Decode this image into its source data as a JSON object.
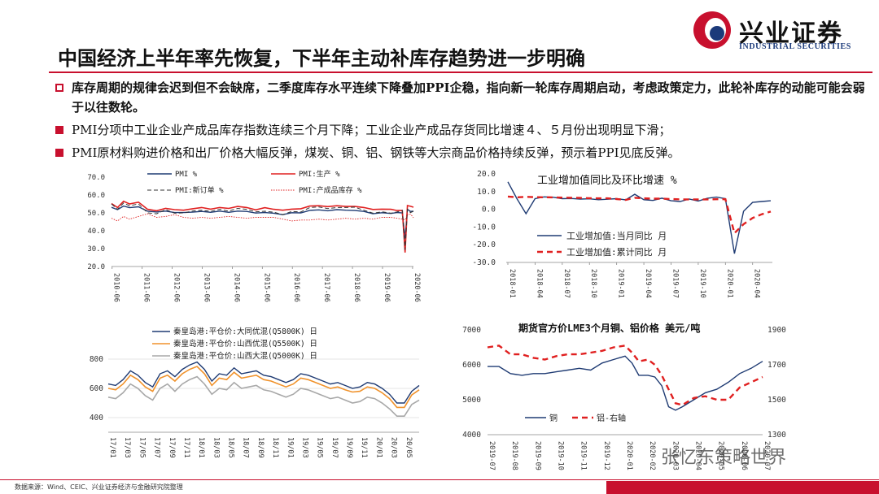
{
  "logo": {
    "name_cn": "兴业证券",
    "name_en": "INDUSTRIAL SECURITIES"
  },
  "title": "中国经济上半年率先恢复，下半年主动补库存趋势进一步明确",
  "bullets": [
    "库存周期的规律会迟到但不会缺席，二季度库存水平连续下降叠加PPI企稳，指向新一轮库存周期启动，考虑政策定力，此轮补库存的动能可能会弱于以往数轮。",
    "PMI分项中工业企业产成品库存指数连续三个月下降；工业企业产成品存货同比增速４、５月份出现明显下滑；",
    "PMI原材料购进价格和出厂价格大幅反弹，煤炭、铜、铝、钢铁等大宗商品价格持续反弹，预示着PPI见底反弹。"
  ],
  "colors": {
    "brand_red": "#c8102e",
    "brand_blue": "#1b3a7a",
    "series_blue": "#1f3b73",
    "series_red": "#e02020",
    "series_orange": "#f0922b",
    "series_gray": "#a8a8a8"
  },
  "source": "数据来源：Wind、CEIC、兴业证券经济与金融研究院整理",
  "watermark": "张忆东策略世界",
  "chart_data": [
    {
      "id": "pmi",
      "type": "line",
      "title": "",
      "ylim": [
        20,
        70
      ],
      "yticks": [
        "70.0",
        "60.0",
        "50.0",
        "40.0",
        "30.0",
        "20.0"
      ],
      "xticks": [
        "2010-06",
        "2011-06",
        "2012-06",
        "2013-06",
        "2014-06",
        "2015-06",
        "2016-06",
        "2017-06",
        "2018-06",
        "2019-06",
        "2020-06"
      ],
      "legend": [
        "PMI %",
        "PMI:生产 %",
        "PMI:新订单 %",
        "PMI:产成品库存 %"
      ],
      "series": [
        {
          "name": "PMI %",
          "style": "solid-blue",
          "x": [
            2010.4,
            2010.6,
            2010.8,
            2011.0,
            2011.3,
            2011.6,
            2011.9,
            2012.2,
            2012.5,
            2012.8,
            2013.1,
            2013.4,
            2013.7,
            2014.0,
            2014.3,
            2014.6,
            2014.9,
            2015.2,
            2015.5,
            2015.8,
            2016.1,
            2016.4,
            2016.7,
            2017.0,
            2017.3,
            2017.6,
            2017.9,
            2018.2,
            2018.5,
            2018.8,
            2019.1,
            2019.4,
            2019.7,
            2019.9,
            2020.08,
            2020.17,
            2020.25,
            2020.35,
            2020.45
          ],
          "y": [
            53.1,
            51.8,
            53.8,
            52.9,
            53.4,
            50.9,
            50.5,
            51.0,
            50.2,
            50.2,
            50.4,
            50.8,
            50.3,
            51.0,
            50.3,
            51.0,
            50.8,
            49.9,
            50.2,
            49.8,
            49.0,
            50.1,
            50.0,
            51.4,
            51.7,
            51.2,
            51.8,
            51.5,
            51.3,
            50.8,
            49.5,
            50.1,
            49.7,
            50.2,
            50.0,
            35.7,
            52.0,
            50.8,
            50.9
          ]
        },
        {
          "name": "PMI:生产 %",
          "style": "solid-red",
          "x": [
            2010.4,
            2010.6,
            2010.8,
            2011.0,
            2011.3,
            2011.6,
            2011.9,
            2012.2,
            2012.5,
            2012.8,
            2013.1,
            2013.4,
            2013.7,
            2014.0,
            2014.3,
            2014.6,
            2014.9,
            2015.2,
            2015.5,
            2015.8,
            2016.1,
            2016.4,
            2016.7,
            2017.0,
            2017.3,
            2017.6,
            2017.9,
            2018.2,
            2018.5,
            2018.8,
            2019.1,
            2019.4,
            2019.7,
            2019.9,
            2020.08,
            2020.17,
            2020.25,
            2020.35,
            2020.45
          ],
          "y": [
            55.2,
            53.0,
            56.5,
            55.0,
            56.0,
            52.0,
            51.2,
            52.5,
            51.8,
            51.5,
            52.3,
            53.0,
            52.1,
            53.0,
            52.5,
            53.6,
            53.0,
            51.7,
            52.9,
            52.0,
            51.5,
            52.1,
            52.3,
            53.8,
            54.0,
            53.5,
            54.0,
            53.6,
            53.6,
            53.0,
            51.9,
            52.1,
            52.0,
            51.3,
            51.3,
            27.8,
            54.1,
            53.7,
            53.2
          ]
        },
        {
          "name": "PMI:新订单 %",
          "style": "dashed-dark",
          "x": [
            2010.4,
            2010.6,
            2010.8,
            2011.0,
            2011.3,
            2011.6,
            2011.9,
            2012.2,
            2012.5,
            2012.8,
            2013.1,
            2013.4,
            2013.7,
            2014.0,
            2014.3,
            2014.6,
            2014.9,
            2015.2,
            2015.5,
            2015.8,
            2016.1,
            2016.4,
            2016.7,
            2017.0,
            2017.3,
            2017.6,
            2017.9,
            2018.2,
            2018.5,
            2018.8,
            2019.1,
            2019.4,
            2019.7,
            2019.9,
            2020.08,
            2020.17,
            2020.25,
            2020.35,
            2020.45
          ],
          "y": [
            55.0,
            52.0,
            55.5,
            54.0,
            55.0,
            50.0,
            49.5,
            51.8,
            49.8,
            50.0,
            51.0,
            51.5,
            50.8,
            52.0,
            51.0,
            52.5,
            52.0,
            50.6,
            50.9,
            50.4,
            49.0,
            50.8,
            50.5,
            53.0,
            53.3,
            52.4,
            53.0,
            53.0,
            53.2,
            51.5,
            49.8,
            50.6,
            49.8,
            50.5,
            51.4,
            29.3,
            52.0,
            50.2,
            50.9
          ]
        },
        {
          "name": "PMI:产成品库存 %",
          "style": "dotted-red",
          "x": [
            2010.4,
            2010.6,
            2010.8,
            2011.0,
            2011.3,
            2011.6,
            2011.9,
            2012.2,
            2012.5,
            2012.8,
            2013.1,
            2013.4,
            2013.7,
            2014.0,
            2014.3,
            2014.6,
            2014.9,
            2015.2,
            2015.5,
            2015.8,
            2016.1,
            2016.4,
            2016.7,
            2017.0,
            2017.3,
            2017.6,
            2017.9,
            2018.2,
            2018.5,
            2018.8,
            2019.1,
            2019.4,
            2019.7,
            2019.9,
            2020.08,
            2020.17,
            2020.25,
            2020.35,
            2020.45
          ],
          "y": [
            47.0,
            45.5,
            48.0,
            46.5,
            48.0,
            49.5,
            47.5,
            48.0,
            49.0,
            47.5,
            47.0,
            47.5,
            47.0,
            47.5,
            48.0,
            47.5,
            47.0,
            47.5,
            47.5,
            47.5,
            46.5,
            45.5,
            46.0,
            46.0,
            46.5,
            46.0,
            46.5,
            47.0,
            46.5,
            47.0,
            46.5,
            47.5,
            47.5,
            47.0,
            46.5,
            46.1,
            49.1,
            49.3,
            47.3
          ]
        }
      ]
    },
    {
      "id": "industrial",
      "type": "line",
      "title": "工业增加值同比及环比增速 %",
      "ylim": [
        -30,
        20
      ],
      "yticks": [
        "20.0",
        "10.0",
        "0.0",
        "-10.0",
        "-20.0",
        "-30.0"
      ],
      "xticks": [
        "2018-01",
        "2018-04",
        "2018-07",
        "2018-10",
        "2019-01",
        "2019-04",
        "2019-07",
        "2019-10",
        "2020-01",
        "2020-04"
      ],
      "legend": [
        "工业增加值:当月同比 月",
        "工业增加值:累计同比 月"
      ],
      "series": [
        {
          "name": "工业增加值:当月同比 月",
          "style": "solid-blue",
          "x": [
            0,
            1,
            2,
            3,
            4,
            5,
            6,
            7,
            8,
            9,
            10,
            11,
            12,
            13,
            14,
            15,
            16,
            17,
            18,
            19,
            20,
            21,
            22,
            23,
            24,
            25,
            26,
            27,
            28,
            29
          ],
          "y": [
            15.5,
            6.0,
            -2.5,
            6.0,
            7.0,
            6.8,
            6.0,
            6.1,
            5.8,
            5.9,
            5.4,
            5.7,
            6.0,
            5.3,
            8.5,
            5.4,
            5.0,
            6.3,
            4.8,
            4.4,
            5.8,
            4.7,
            6.2,
            6.9,
            6.0,
            -25.0,
            -1.1,
            3.9,
            4.4,
            4.8
          ]
        },
        {
          "name": "工业增加值:累计同比 月",
          "style": "dashed-red",
          "x": [
            0,
            1,
            2,
            3,
            4,
            5,
            6,
            7,
            8,
            9,
            10,
            11,
            12,
            13,
            14,
            15,
            16,
            17,
            18,
            19,
            20,
            21,
            22,
            23,
            24,
            25,
            26,
            27,
            28,
            29
          ],
          "y": [
            7.2,
            6.8,
            7.0,
            6.9,
            6.8,
            6.7,
            6.6,
            6.5,
            6.4,
            6.3,
            6.2,
            6.2,
            5.8,
            5.3,
            6.5,
            6.2,
            6.0,
            6.0,
            5.8,
            5.6,
            5.6,
            5.6,
            5.6,
            5.7,
            5.7,
            -13.5,
            -8.4,
            -4.9,
            -2.8,
            -1.3
          ]
        }
      ]
    },
    {
      "id": "coal",
      "type": "line",
      "title": "",
      "ylim": [
        300,
        850
      ],
      "yticks": [
        "800",
        "600",
        "400"
      ],
      "xticks": [
        "17/01",
        "17/03",
        "17/05",
        "17/07",
        "17/09",
        "17/11",
        "18/01",
        "18/03",
        "18/05",
        "18/07",
        "18/09",
        "18/11",
        "19/01",
        "19/03",
        "19/05",
        "19/07",
        "19/09",
        "19/11",
        "20/01",
        "20/03",
        "20/05"
      ],
      "legend": [
        "秦皇岛港:平仓价:大同优混(Q5800K) 日",
        "秦皇岛港:平仓价:山西优混(Q5500K) 日",
        "秦皇岛港:平仓价:山西大混(Q5000K) 日"
      ],
      "series": [
        {
          "name": "秦皇岛港:平仓价:大同优混(Q5800K) 日",
          "style": "solid-blue",
          "x": [
            0,
            1,
            2,
            3,
            4,
            5,
            6,
            7,
            8,
            9,
            10,
            11,
            12,
            13,
            14,
            15,
            16,
            17,
            18,
            19,
            20,
            21,
            22,
            23,
            24,
            25,
            26,
            27,
            28,
            29,
            30,
            31,
            32,
            33,
            34,
            35,
            36,
            37,
            38,
            39,
            40,
            41,
            42
          ],
          "y": [
            630,
            620,
            660,
            720,
            690,
            640,
            610,
            700,
            720,
            680,
            730,
            760,
            780,
            730,
            650,
            700,
            690,
            740,
            700,
            710,
            720,
            690,
            680,
            660,
            640,
            660,
            700,
            690,
            670,
            650,
            630,
            640,
            620,
            600,
            610,
            640,
            630,
            600,
            560,
            500,
            500,
            580,
            620
          ]
        },
        {
          "name": "秦皇岛港:平仓价:山西优混(Q5500K) 日",
          "style": "solid-orange",
          "x": [
            0,
            1,
            2,
            3,
            4,
            5,
            6,
            7,
            8,
            9,
            10,
            11,
            12,
            13,
            14,
            15,
            16,
            17,
            18,
            19,
            20,
            21,
            22,
            23,
            24,
            25,
            26,
            27,
            28,
            29,
            30,
            31,
            32,
            33,
            34,
            35,
            36,
            37,
            38,
            39,
            40,
            41,
            42
          ],
          "y": [
            600,
            590,
            630,
            690,
            660,
            610,
            580,
            670,
            690,
            650,
            700,
            730,
            750,
            700,
            620,
            670,
            660,
            710,
            670,
            680,
            690,
            660,
            650,
            630,
            610,
            630,
            670,
            660,
            640,
            620,
            600,
            610,
            590,
            575,
            580,
            610,
            600,
            570,
            530,
            470,
            470,
            555,
            590
          ]
        },
        {
          "name": "秦皇岛港:平仓价:山西大混(Q5000K) 日",
          "style": "solid-gray",
          "x": [
            0,
            1,
            2,
            3,
            4,
            5,
            6,
            7,
            8,
            9,
            10,
            11,
            12,
            13,
            14,
            15,
            16,
            17,
            18,
            19,
            20,
            21,
            22,
            23,
            24,
            25,
            26,
            27,
            28,
            29,
            30,
            31,
            32,
            33,
            34,
            35,
            36,
            37,
            38,
            39,
            40,
            41,
            42
          ],
          "y": [
            540,
            530,
            570,
            630,
            600,
            550,
            520,
            600,
            630,
            580,
            630,
            660,
            680,
            630,
            560,
            600,
            590,
            640,
            600,
            610,
            620,
            590,
            580,
            560,
            540,
            560,
            600,
            590,
            570,
            550,
            530,
            540,
            520,
            500,
            510,
            540,
            530,
            500,
            460,
            410,
            410,
            490,
            520
          ]
        }
      ]
    },
    {
      "id": "lme",
      "type": "line",
      "title": "期货官方价LME3个月铜、铝价格 美元/吨",
      "ylim_left": [
        4000,
        7000
      ],
      "ylim_right": [
        1300,
        1900
      ],
      "yticks_left": [
        "7000",
        "6000",
        "5000",
        "4000"
      ],
      "yticks_right": [
        "1900",
        "1700",
        "1500",
        "1300"
      ],
      "xticks": [
        "2019-07",
        "2019-08",
        "2019-09",
        "2019-10",
        "2019-11",
        "2019-12",
        "2020-01",
        "2020-02",
        "2020-03",
        "2020-04",
        "2020-05",
        "2020-06",
        "2020-07"
      ],
      "legend": [
        "铜",
        "铝-右轴"
      ],
      "series": [
        {
          "name": "铜",
          "axis": "left",
          "style": "solid-blue",
          "x": [
            0,
            0.5,
            1,
            1.5,
            2,
            2.5,
            3,
            3.5,
            4,
            4.5,
            5,
            5.5,
            6,
            6.3,
            6.6,
            7,
            7.3,
            7.6,
            7.9,
            8.2,
            8.5,
            9,
            9.5,
            10,
            10.5,
            11,
            11.5,
            12
          ],
          "y": [
            5950,
            5950,
            5750,
            5700,
            5750,
            5750,
            5800,
            5850,
            5900,
            5850,
            6050,
            6150,
            6250,
            6050,
            5700,
            5700,
            5650,
            5400,
            4800,
            4700,
            4800,
            5000,
            5200,
            5300,
            5500,
            5750,
            5900,
            6100
          ]
        },
        {
          "name": "铝-右轴",
          "axis": "right",
          "style": "dashed-red",
          "x": [
            0,
            0.5,
            1,
            1.5,
            2,
            2.5,
            3,
            3.5,
            4,
            4.5,
            5,
            5.5,
            6,
            6.3,
            6.6,
            7,
            7.3,
            7.6,
            7.9,
            8.2,
            8.5,
            9,
            9.5,
            10,
            10.5,
            11,
            11.5,
            12
          ],
          "y": [
            1800,
            1810,
            1760,
            1760,
            1740,
            1730,
            1750,
            1760,
            1760,
            1770,
            1780,
            1800,
            1810,
            1770,
            1720,
            1730,
            1700,
            1640,
            1560,
            1480,
            1470,
            1510,
            1520,
            1500,
            1500,
            1570,
            1600,
            1630
          ]
        }
      ]
    }
  ]
}
